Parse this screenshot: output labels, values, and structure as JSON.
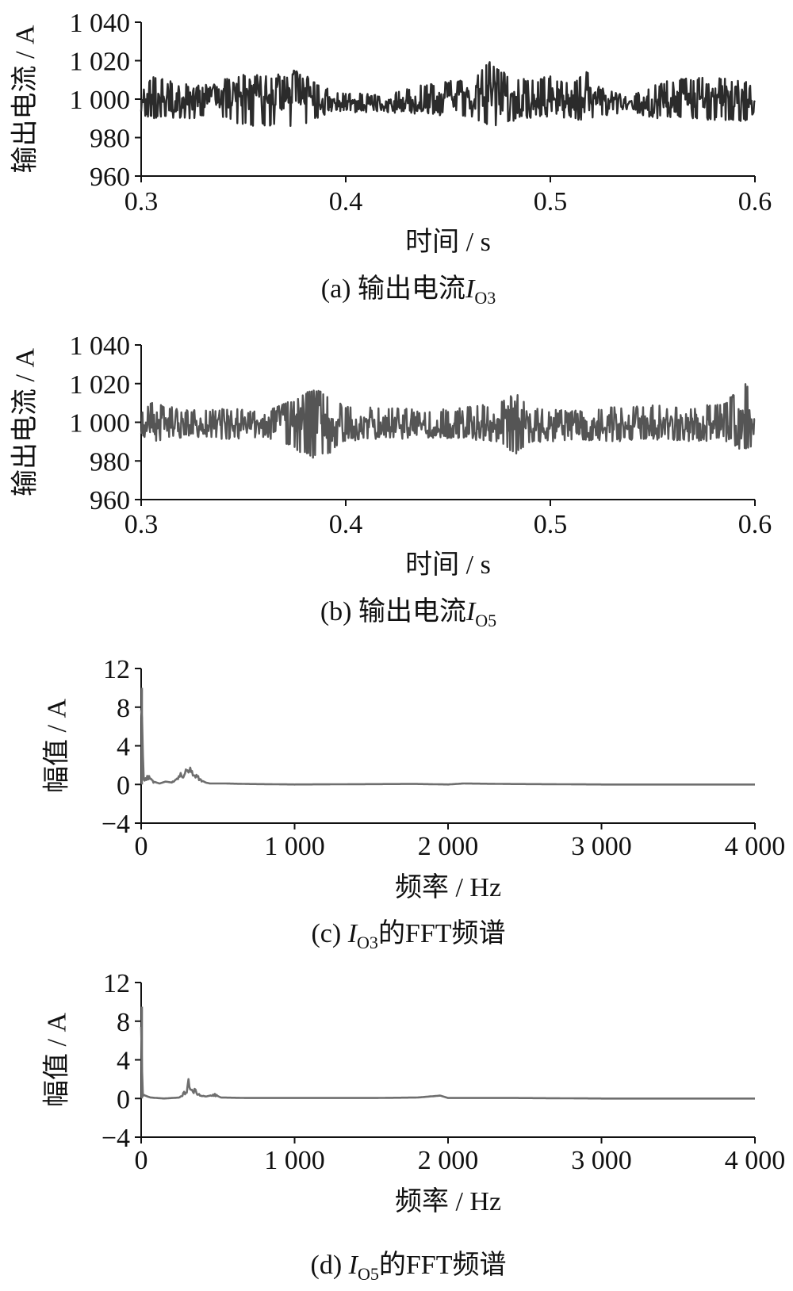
{
  "chart_data": [
    {
      "id": "a",
      "type": "line",
      "caption": {
        "prefix": "(a)",
        "text": "输出电流",
        "symbol": "I",
        "subscript": "O3",
        "suffix": ""
      },
      "xlabel": "时间 / s",
      "ylabel": "输出电流 / A",
      "xlim": [
        0.3,
        0.6
      ],
      "ylim": [
        960,
        1040
      ],
      "xticks": [
        0.3,
        0.4,
        0.5,
        0.6
      ],
      "xtick_labels": [
        "0.3",
        "0.4",
        "0.5",
        "0.6"
      ],
      "yticks": [
        960,
        980,
        1000,
        1020,
        1040
      ],
      "ytick_labels": [
        "960",
        "980",
        "1 000",
        "1 020",
        "1 040"
      ],
      "color": "#2b2b2b",
      "series": [
        {
          "values": [
            [
              0.3,
              1001
            ],
            [
              0.31,
              999
            ],
            [
              0.32,
              998
            ],
            [
              0.33,
              1001
            ],
            [
              0.34,
              1001
            ],
            [
              0.35,
              1004
            ],
            [
              0.36,
              1000
            ],
            [
              0.37,
              1003
            ],
            [
              0.375,
              1006
            ],
            [
              0.385,
              999
            ],
            [
              0.4,
              997
            ],
            [
              0.42,
              997
            ],
            [
              0.44,
              998
            ],
            [
              0.45,
              999
            ],
            [
              0.46,
              1000
            ],
            [
              0.47,
              1004
            ],
            [
              0.48,
              998
            ],
            [
              0.5,
              1000
            ],
            [
              0.51,
              999
            ],
            [
              0.52,
              1002
            ],
            [
              0.53,
              998
            ],
            [
              0.55,
              997
            ],
            [
              0.56,
              999
            ],
            [
              0.57,
              1000
            ],
            [
              0.58,
              1002
            ],
            [
              0.59,
              1000
            ],
            [
              0.6,
              1000
            ]
          ]
        }
      ],
      "envelope": [
        [
          0.3,
          992,
          1004
        ],
        [
          0.305,
          990,
          1012
        ],
        [
          0.32,
          990,
          1008
        ],
        [
          0.33,
          990,
          1007
        ],
        [
          0.34,
          990,
          1010
        ],
        [
          0.35,
          986,
          1014
        ],
        [
          0.365,
          986,
          1012
        ],
        [
          0.372,
          986,
          1016
        ],
        [
          0.378,
          986,
          1014
        ],
        [
          0.39,
          992,
          1006
        ],
        [
          0.4,
          993,
          1003
        ],
        [
          0.42,
          993,
          1003
        ],
        [
          0.44,
          992,
          1008
        ],
        [
          0.455,
          991,
          1010
        ],
        [
          0.465,
          988,
          1014
        ],
        [
          0.471,
          985,
          1020
        ],
        [
          0.48,
          988,
          1012
        ],
        [
          0.49,
          990,
          1010
        ],
        [
          0.5,
          991,
          1012
        ],
        [
          0.51,
          990,
          1008
        ],
        [
          0.518,
          988,
          1016
        ],
        [
          0.525,
          991,
          1006
        ],
        [
          0.54,
          993,
          1002
        ],
        [
          0.55,
          990,
          1008
        ],
        [
          0.56,
          990,
          1010
        ],
        [
          0.575,
          989,
          1012
        ],
        [
          0.585,
          989,
          1011
        ],
        [
          0.595,
          988,
          1010
        ],
        [
          0.6,
          992,
          1007
        ]
      ]
    },
    {
      "id": "b",
      "type": "line",
      "caption": {
        "prefix": "(b)",
        "text": "输出电流",
        "symbol": "I",
        "subscript": "O5",
        "suffix": ""
      },
      "xlabel": "时间 / s",
      "ylabel": "输出电流 / A",
      "xlim": [
        0.3,
        0.6
      ],
      "ylim": [
        960,
        1040
      ],
      "xticks": [
        0.3,
        0.4,
        0.5,
        0.6
      ],
      "xtick_labels": [
        "0.3",
        "0.4",
        "0.5",
        "0.6"
      ],
      "yticks": [
        960,
        980,
        1000,
        1020,
        1040
      ],
      "ytick_labels": [
        "960",
        "980",
        "1 000",
        "1 020",
        "1 040"
      ],
      "color": "#555555",
      "series": [
        {
          "values": [
            [
              0.3,
              1000
            ],
            [
              0.32,
              998
            ],
            [
              0.34,
              999
            ],
            [
              0.36,
              998
            ],
            [
              0.375,
              1001
            ],
            [
              0.385,
              1003
            ],
            [
              0.395,
              997
            ],
            [
              0.41,
              998
            ],
            [
              0.43,
              999
            ],
            [
              0.45,
              997
            ],
            [
              0.47,
              998
            ],
            [
              0.485,
              1003
            ],
            [
              0.495,
              998
            ],
            [
              0.51,
              997
            ],
            [
              0.53,
              999
            ],
            [
              0.55,
              998
            ],
            [
              0.57,
              999
            ],
            [
              0.59,
              998
            ],
            [
              0.6,
              1000
            ]
          ]
        }
      ],
      "envelope": [
        [
          0.3,
          992,
          1006
        ],
        [
          0.305,
          990,
          1012
        ],
        [
          0.32,
          992,
          1006
        ],
        [
          0.34,
          991,
          1008
        ],
        [
          0.36,
          992,
          1005
        ],
        [
          0.375,
          986,
          1012
        ],
        [
          0.384,
          981,
          1018
        ],
        [
          0.392,
          984,
          1014
        ],
        [
          0.4,
          990,
          1008
        ],
        [
          0.42,
          991,
          1008
        ],
        [
          0.44,
          992,
          1006
        ],
        [
          0.46,
          991,
          1008
        ],
        [
          0.475,
          990,
          1010
        ],
        [
          0.483,
          983,
          1016
        ],
        [
          0.49,
          989,
          1008
        ],
        [
          0.51,
          991,
          1006
        ],
        [
          0.53,
          990,
          1008
        ],
        [
          0.55,
          991,
          1009
        ],
        [
          0.57,
          990,
          1008
        ],
        [
          0.585,
          990,
          1010
        ],
        [
          0.595,
          985,
          1022
        ],
        [
          0.6,
          987,
          1012
        ]
      ]
    },
    {
      "id": "c",
      "type": "line",
      "caption": {
        "prefix": "(c)",
        "text": "",
        "symbol": "I",
        "subscript": "O3",
        "suffix": "的FFT频谱"
      },
      "xlabel": "频率 / Hz",
      "ylabel": "幅值 / A",
      "xlim": [
        0,
        4000
      ],
      "ylim": [
        -4,
        12
      ],
      "xticks": [
        0,
        1000,
        2000,
        3000,
        4000
      ],
      "xtick_labels": [
        "0",
        "1 000",
        "2 000",
        "3 000",
        "4 000"
      ],
      "yticks": [
        -4,
        0,
        4,
        8,
        12
      ],
      "ytick_labels": [
        "−4",
        "0",
        "4",
        "8",
        "12"
      ],
      "color": "#6e6e6e",
      "series": [
        {
          "values": [
            [
              0,
              10
            ],
            [
              15,
              0.6
            ],
            [
              50,
              0.8
            ],
            [
              80,
              0.3
            ],
            [
              120,
              0.1
            ],
            [
              160,
              0.3
            ],
            [
              200,
              0.2
            ],
            [
              240,
              0.9
            ],
            [
              280,
              1.2
            ],
            [
              300,
              1.4
            ],
            [
              320,
              1.6
            ],
            [
              340,
              1.4
            ],
            [
              360,
              1.0
            ],
            [
              390,
              0.5
            ],
            [
              420,
              0.2
            ],
            [
              450,
              0.1
            ],
            [
              550,
              0.1
            ],
            [
              700,
              0.05
            ],
            [
              1000,
              0.0
            ],
            [
              1700,
              0.05
            ],
            [
              1800,
              0.05
            ],
            [
              2000,
              0.0
            ],
            [
              2100,
              0.1
            ],
            [
              2400,
              0.05
            ],
            [
              3000,
              0.0
            ],
            [
              4000,
              0.0
            ]
          ]
        }
      ]
    },
    {
      "id": "d",
      "type": "line",
      "caption": {
        "prefix": "(d)",
        "text": "",
        "symbol": "I",
        "subscript": "O5",
        "suffix": "的FFT频谱"
      },
      "xlabel": "频率 / Hz",
      "ylabel": "幅值 / A",
      "xlim": [
        0,
        4000
      ],
      "ylim": [
        -4,
        12
      ],
      "xticks": [
        0,
        1000,
        2000,
        3000,
        4000
      ],
      "xtick_labels": [
        "0",
        "1 000",
        "2 000",
        "3 000",
        "4 000"
      ],
      "yticks": [
        -4,
        0,
        4,
        8,
        12
      ],
      "ytick_labels": [
        "−4",
        "0",
        "4",
        "8",
        "12"
      ],
      "color": "#6e6e6e",
      "series": [
        {
          "values": [
            [
              0,
              9.5
            ],
            [
              10,
              0.4
            ],
            [
              60,
              0.1
            ],
            [
              150,
              0.0
            ],
            [
              250,
              0.1
            ],
            [
              280,
              0.6
            ],
            [
              300,
              1.0
            ],
            [
              310,
              1.8
            ],
            [
              320,
              0.8
            ],
            [
              350,
              0.9
            ],
            [
              380,
              0.4
            ],
            [
              420,
              0.2
            ],
            [
              480,
              0.4
            ],
            [
              520,
              0.1
            ],
            [
              700,
              0.05
            ],
            [
              1000,
              0.05
            ],
            [
              1300,
              0.05
            ],
            [
              1500,
              0.05
            ],
            [
              1800,
              0.1
            ],
            [
              1950,
              0.3
            ],
            [
              2000,
              0.05
            ],
            [
              2200,
              0.05
            ],
            [
              2450,
              0.05
            ],
            [
              3000,
              0.0
            ],
            [
              4000,
              0.0
            ]
          ]
        }
      ]
    }
  ]
}
